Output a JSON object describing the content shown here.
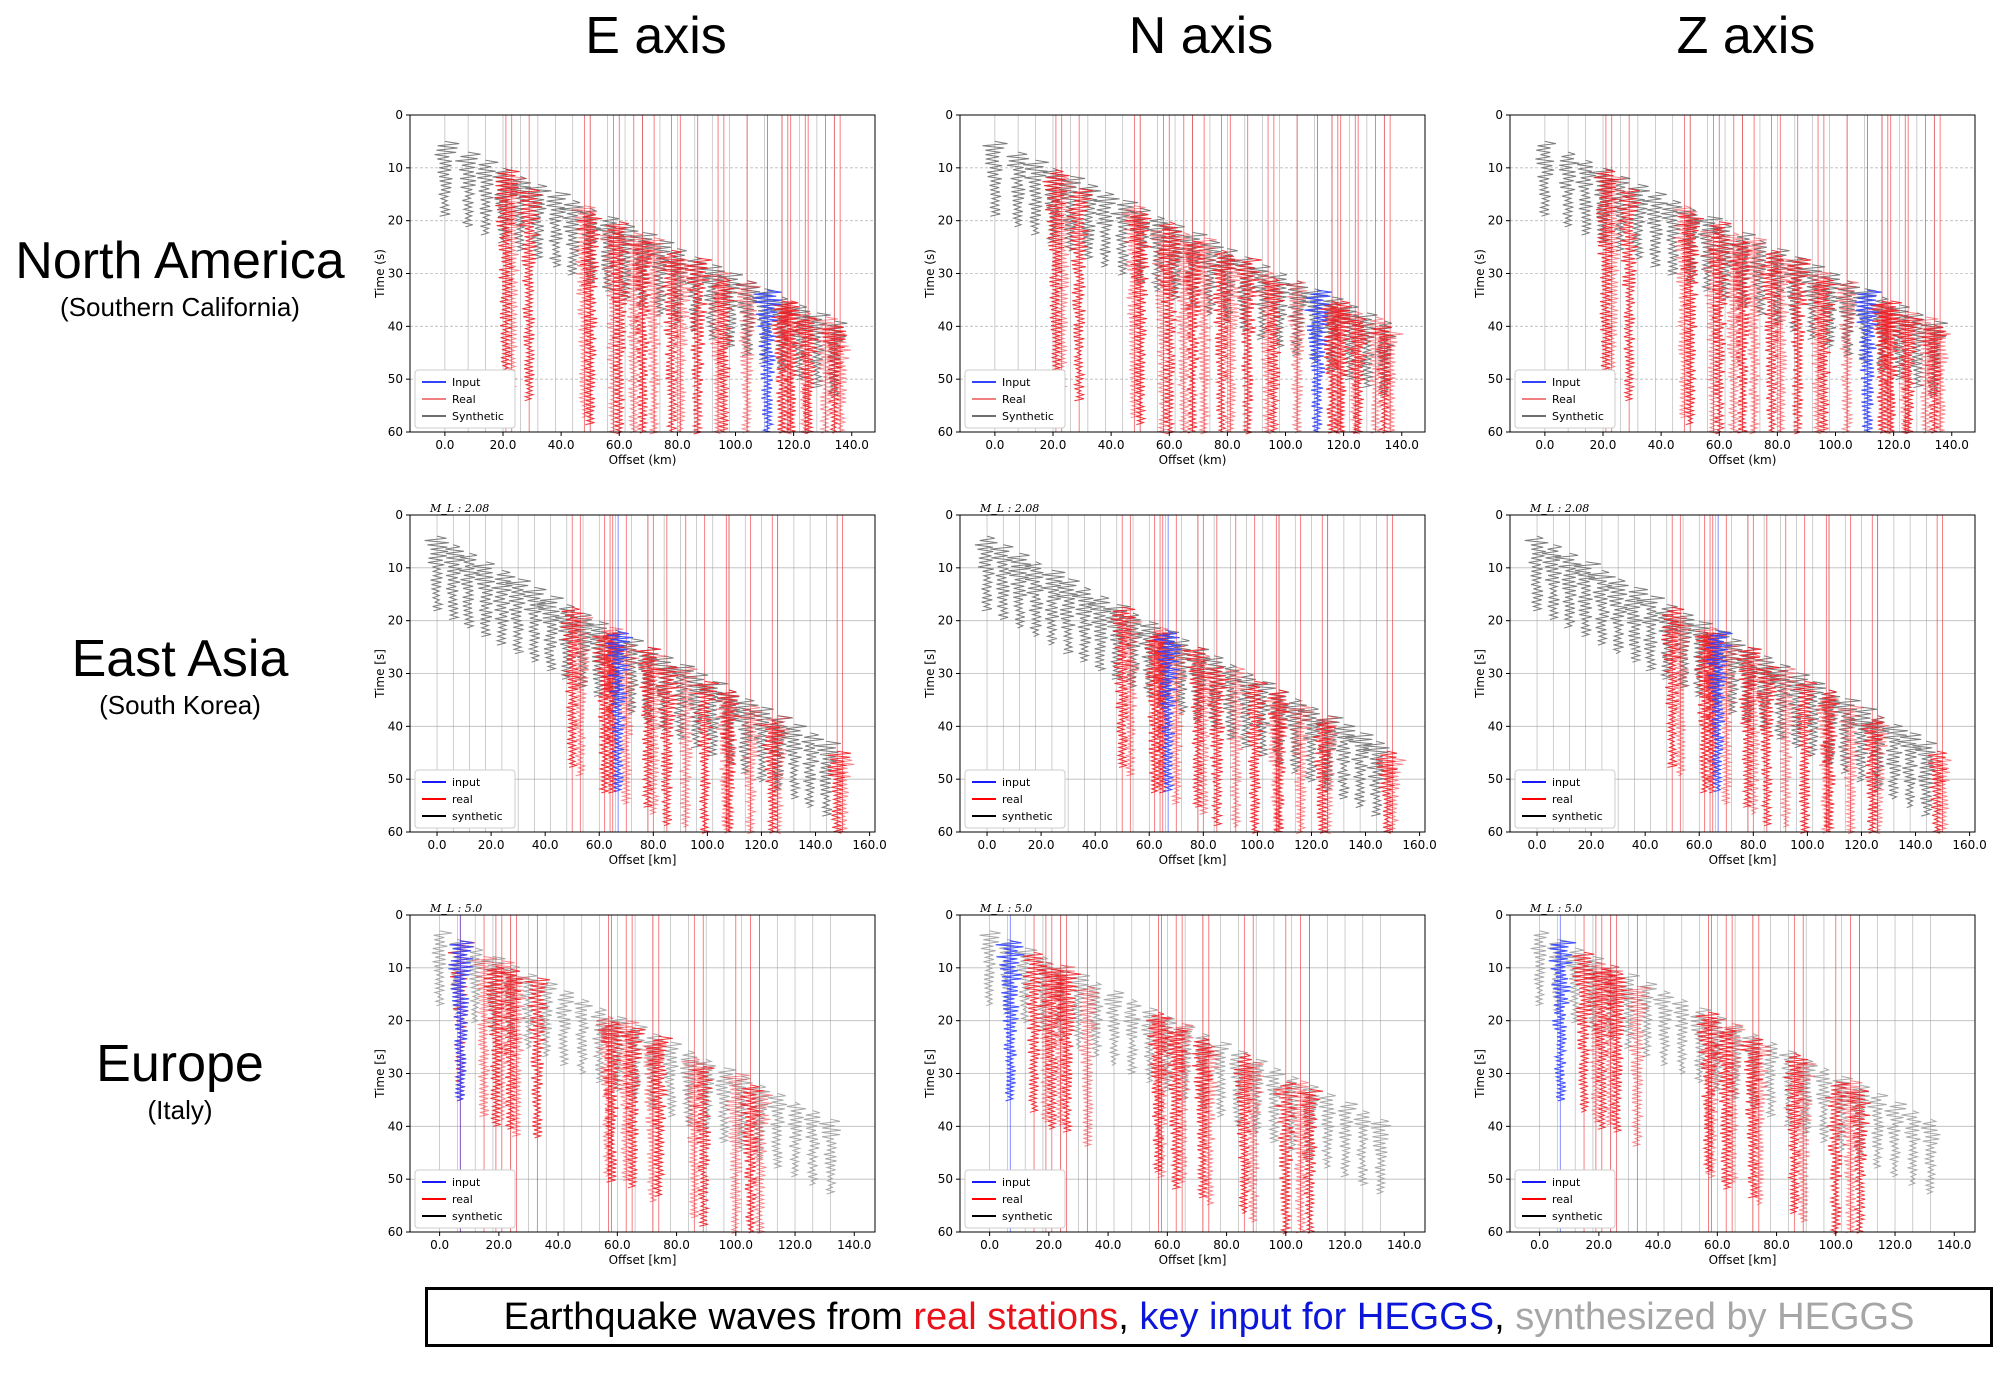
{
  "columns": [
    "E axis",
    "N axis",
    "Z axis"
  ],
  "rows": [
    {
      "region": "North America",
      "sub": "(Southern California)"
    },
    {
      "region": "East Asia",
      "sub": "(South Korea)"
    },
    {
      "region": "Europe",
      "sub": "(Italy)"
    }
  ],
  "caption": {
    "part1": "Earthquake waves from ",
    "real": "real stations",
    "sep1": ", ",
    "key": "key input for HEGGS",
    "sep2": ", ",
    "syn": "synthesized by HEGGS"
  },
  "colors": {
    "input": "#3344ff",
    "real": "#ee1c24",
    "synthetic": "#6e6e6e",
    "grid": "#bbbbbb"
  },
  "chart_data": [
    {
      "type": "line",
      "row": 0,
      "component": "E axis",
      "xlabel": "Offset (km)",
      "ylabel": "Time (s)",
      "xlim": [
        -12,
        148
      ],
      "ylim": [
        60,
        0
      ],
      "xticks": [
        0,
        20,
        40,
        60,
        80,
        100,
        120,
        140
      ],
      "xtick_labels": [
        "0.0",
        "20.0",
        "40.0",
        "60.0",
        "80.0",
        "100.0",
        "120.0",
        "140.0"
      ],
      "yticks": [
        0,
        10,
        20,
        30,
        40,
        50,
        60
      ],
      "legend": [
        "Input",
        "Real",
        "Synthetic"
      ],
      "legend_position": "lower-left",
      "annotation": "",
      "synthetic_x": [
        0,
        8,
        14,
        20,
        26,
        32,
        38,
        44,
        50,
        56,
        62,
        68,
        74,
        80,
        86,
        92,
        98,
        104,
        110,
        116,
        122,
        128,
        134
      ],
      "real_x": [
        21,
        23,
        29,
        48,
        50,
        58,
        60,
        65,
        68,
        72,
        78,
        81,
        87,
        94,
        96,
        104,
        116,
        118,
        119,
        124,
        125,
        131,
        134,
        136
      ],
      "input_x": [
        111
      ],
      "arrival_start_s": 5,
      "arrival_end_s": 40
    },
    {
      "type": "line",
      "row": 0,
      "component": "N axis",
      "xlabel": "Offset (km)",
      "ylabel": "Time (s)",
      "xlim": [
        -12,
        148
      ],
      "ylim": [
        60,
        0
      ],
      "xticks": [
        0,
        20,
        40,
        60,
        80,
        100,
        120,
        140
      ],
      "xtick_labels": [
        "0.0",
        "20.0",
        "40.0",
        "60.0",
        "80.0",
        "100.0",
        "120.0",
        "140.0"
      ],
      "yticks": [
        0,
        10,
        20,
        30,
        40,
        50,
        60
      ],
      "legend": [
        "Input",
        "Real",
        "Synthetic"
      ],
      "legend_position": "lower-left",
      "annotation": "",
      "synthetic_x": [
        0,
        8,
        14,
        20,
        26,
        32,
        38,
        44,
        50,
        56,
        62,
        68,
        74,
        80,
        86,
        92,
        98,
        104,
        110,
        116,
        122,
        128,
        134
      ],
      "real_x": [
        21,
        23,
        29,
        48,
        50,
        58,
        60,
        65,
        68,
        72,
        78,
        81,
        87,
        94,
        96,
        104,
        116,
        118,
        119,
        124,
        125,
        131,
        134,
        136
      ],
      "input_x": [
        111
      ],
      "arrival_start_s": 5,
      "arrival_end_s": 40
    },
    {
      "type": "line",
      "row": 0,
      "component": "Z axis",
      "xlabel": "Offset (km)",
      "ylabel": "Time (s)",
      "xlim": [
        -12,
        148
      ],
      "ylim": [
        60,
        0
      ],
      "xticks": [
        0,
        20,
        40,
        60,
        80,
        100,
        120,
        140
      ],
      "xtick_labels": [
        "0.0",
        "20.0",
        "40.0",
        "60.0",
        "80.0",
        "100.0",
        "120.0",
        "140.0"
      ],
      "yticks": [
        0,
        10,
        20,
        30,
        40,
        50,
        60
      ],
      "legend": [
        "Input",
        "Real",
        "Synthetic"
      ],
      "legend_position": "lower-left",
      "annotation": "",
      "synthetic_x": [
        0,
        8,
        14,
        20,
        26,
        32,
        38,
        44,
        50,
        56,
        62,
        68,
        74,
        80,
        86,
        92,
        98,
        104,
        110,
        116,
        122,
        128,
        134
      ],
      "real_x": [
        21,
        23,
        29,
        48,
        50,
        58,
        60,
        65,
        68,
        72,
        78,
        81,
        87,
        94,
        96,
        104,
        116,
        118,
        119,
        124,
        125,
        131,
        134,
        136
      ],
      "input_x": [
        111
      ],
      "arrival_start_s": 5,
      "arrival_end_s": 40
    },
    {
      "type": "line",
      "row": 1,
      "component": "E axis",
      "xlabel": "Offset [km]",
      "ylabel": "Time [s]",
      "xlim": [
        -10,
        162
      ],
      "ylim": [
        60,
        0
      ],
      "xticks": [
        0,
        20,
        40,
        60,
        80,
        100,
        120,
        140,
        160
      ],
      "xtick_labels": [
        "0.0",
        "20.0",
        "40.0",
        "60.0",
        "80.0",
        "100.0",
        "120.0",
        "140.0",
        "160.0"
      ],
      "yticks": [
        0,
        10,
        20,
        30,
        40,
        50,
        60
      ],
      "legend": [
        "input",
        "real",
        "synthetic"
      ],
      "legend_position": "lower-left",
      "annotation": "M_L : 2.08",
      "synthetic_x": [
        0,
        6,
        12,
        18,
        24,
        30,
        36,
        42,
        48,
        54,
        60,
        66,
        72,
        78,
        84,
        90,
        96,
        102,
        108,
        114,
        120,
        126,
        132,
        138,
        144
      ],
      "real_x": [
        50,
        53,
        62,
        64,
        65,
        70,
        78,
        80,
        85,
        92,
        99,
        107,
        108,
        116,
        124,
        126,
        148,
        150
      ],
      "input_x": [
        67
      ],
      "arrival_start_s": 4,
      "arrival_end_s": 45
    },
    {
      "type": "line",
      "row": 1,
      "component": "N axis",
      "xlabel": "Offset [km]",
      "ylabel": "Time [s]",
      "xlim": [
        -10,
        162
      ],
      "ylim": [
        60,
        0
      ],
      "xticks": [
        0,
        20,
        40,
        60,
        80,
        100,
        120,
        140,
        160
      ],
      "xtick_labels": [
        "0.0",
        "20.0",
        "40.0",
        "60.0",
        "80.0",
        "100.0",
        "120.0",
        "140.0",
        "160.0"
      ],
      "yticks": [
        0,
        10,
        20,
        30,
        40,
        50,
        60
      ],
      "legend": [
        "input",
        "real",
        "synthetic"
      ],
      "legend_position": "lower-left",
      "annotation": "M_L : 2.08",
      "synthetic_x": [
        0,
        6,
        12,
        18,
        24,
        30,
        36,
        42,
        48,
        54,
        60,
        66,
        72,
        78,
        84,
        90,
        96,
        102,
        108,
        114,
        120,
        126,
        132,
        138,
        144
      ],
      "real_x": [
        50,
        53,
        62,
        64,
        65,
        70,
        78,
        80,
        85,
        92,
        99,
        107,
        108,
        116,
        124,
        126,
        148,
        150
      ],
      "input_x": [
        67
      ],
      "arrival_start_s": 4,
      "arrival_end_s": 45
    },
    {
      "type": "line",
      "row": 1,
      "component": "Z axis",
      "xlabel": "Offset [km]",
      "ylabel": "Time [s]",
      "xlim": [
        -10,
        162
      ],
      "ylim": [
        60,
        0
      ],
      "xticks": [
        0,
        20,
        40,
        60,
        80,
        100,
        120,
        140,
        160
      ],
      "xtick_labels": [
        "0.0",
        "20.0",
        "40.0",
        "60.0",
        "80.0",
        "100.0",
        "120.0",
        "140.0",
        "160.0"
      ],
      "yticks": [
        0,
        10,
        20,
        30,
        40,
        50,
        60
      ],
      "legend": [
        "input",
        "real",
        "synthetic"
      ],
      "legend_position": "lower-left",
      "annotation": "M_L : 2.08",
      "synthetic_x": [
        0,
        6,
        12,
        18,
        24,
        30,
        36,
        42,
        48,
        54,
        60,
        66,
        72,
        78,
        84,
        90,
        96,
        102,
        108,
        114,
        120,
        126,
        132,
        138,
        144
      ],
      "real_x": [
        50,
        53,
        62,
        64,
        65,
        70,
        78,
        80,
        85,
        92,
        99,
        107,
        108,
        116,
        124,
        126,
        148,
        150
      ],
      "input_x": [
        67
      ],
      "arrival_start_s": 4,
      "arrival_end_s": 45
    },
    {
      "type": "line",
      "row": 2,
      "component": "E axis",
      "xlabel": "Offset [km]",
      "ylabel": "Time [s]",
      "xlim": [
        -10,
        147
      ],
      "ylim": [
        60,
        0
      ],
      "xticks": [
        0,
        20,
        40,
        60,
        80,
        100,
        120,
        140
      ],
      "xtick_labels": [
        "0.0",
        "20.0",
        "40.0",
        "60.0",
        "80.0",
        "100.0",
        "120.0",
        "140.0"
      ],
      "yticks": [
        0,
        10,
        20,
        30,
        40,
        50,
        60
      ],
      "legend": [
        "input",
        "real",
        "synthetic"
      ],
      "legend_position": "lower-left",
      "annotation": "M_L : 5.0",
      "synthetic_x": [
        0,
        6,
        12,
        18,
        24,
        30,
        36,
        42,
        48,
        54,
        60,
        66,
        72,
        78,
        84,
        90,
        96,
        102,
        108,
        114,
        120,
        126,
        132
      ],
      "real_x": [
        7,
        15,
        19,
        21,
        24,
        26,
        33,
        57,
        58,
        63,
        65,
        72,
        74,
        86,
        89,
        100,
        105,
        108
      ],
      "input_x": [
        7
      ],
      "arrival_start_s": 3,
      "arrival_end_s": 40
    },
    {
      "type": "line",
      "row": 2,
      "component": "N axis",
      "xlabel": "Offset [km]",
      "ylabel": "Time [s]",
      "xlim": [
        -10,
        147
      ],
      "ylim": [
        60,
        0
      ],
      "xticks": [
        0,
        20,
        40,
        60,
        80,
        100,
        120,
        140
      ],
      "xtick_labels": [
        "0.0",
        "20.0",
        "40.0",
        "60.0",
        "80.0",
        "100.0",
        "120.0",
        "140.0"
      ],
      "yticks": [
        0,
        10,
        20,
        30,
        40,
        50,
        60
      ],
      "legend": [
        "input",
        "real",
        "synthetic"
      ],
      "legend_position": "lower-left",
      "annotation": "M_L : 5.0",
      "synthetic_x": [
        0,
        6,
        12,
        18,
        24,
        30,
        36,
        42,
        48,
        54,
        60,
        66,
        72,
        78,
        84,
        90,
        96,
        102,
        108,
        114,
        120,
        126,
        132
      ],
      "real_x": [
        15,
        19,
        21,
        24,
        26,
        33,
        57,
        58,
        63,
        65,
        72,
        74,
        86,
        89,
        100,
        105,
        108
      ],
      "input_x": [
        7
      ],
      "arrival_start_s": 3,
      "arrival_end_s": 40
    },
    {
      "type": "line",
      "row": 2,
      "component": "Z axis",
      "xlabel": "Offset [km]",
      "ylabel": "Time [s]",
      "xlim": [
        -10,
        147
      ],
      "ylim": [
        60,
        0
      ],
      "xticks": [
        0,
        20,
        40,
        60,
        80,
        100,
        120,
        140
      ],
      "xtick_labels": [
        "0.0",
        "20.0",
        "40.0",
        "60.0",
        "80.0",
        "100.0",
        "120.0",
        "140.0"
      ],
      "yticks": [
        0,
        10,
        20,
        30,
        40,
        50,
        60
      ],
      "legend": [
        "input",
        "real",
        "synthetic"
      ],
      "legend_position": "lower-left",
      "annotation": "M_L : 5.0",
      "synthetic_x": [
        0,
        6,
        12,
        18,
        24,
        30,
        36,
        42,
        48,
        54,
        60,
        66,
        72,
        78,
        84,
        90,
        96,
        102,
        108,
        114,
        120,
        126,
        132
      ],
      "real_x": [
        15,
        19,
        21,
        24,
        26,
        33,
        57,
        58,
        63,
        65,
        72,
        74,
        86,
        89,
        100,
        105,
        108
      ],
      "input_x": [
        7
      ],
      "arrival_start_s": 3,
      "arrival_end_s": 40
    }
  ]
}
